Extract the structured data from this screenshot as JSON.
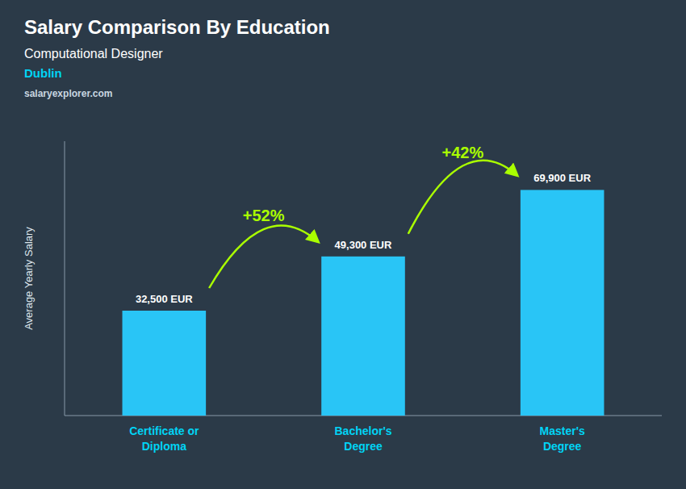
{
  "chart_data": {
    "type": "bar",
    "title": "Salary Comparison By Education",
    "subtitle": [
      "Computational Designer",
      "Dublin",
      "salaryexplorer.com"
    ],
    "y_label": "Average Yearly Salary",
    "categories": [
      "Certificate or\nDiploma",
      "Bachelor's\nDegree",
      "Master's\nDegree"
    ],
    "values": [
      32500,
      49300,
      69900
    ],
    "value_labels": [
      "32,500 EUR",
      "49,300 EUR",
      "69,900 EUR"
    ],
    "data_labels": true,
    "annotations": [
      "+52%",
      "+42%"
    ],
    "color": "#29c5f6",
    "ylim": [
      0,
      85000
    ],
    "yticks": [],
    "grid": false,
    "tick_labels": "x"
  }
}
